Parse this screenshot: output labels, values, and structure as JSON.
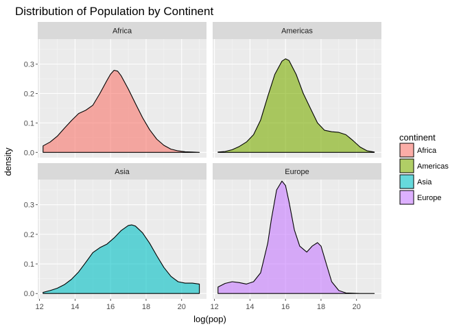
{
  "chart_data": {
    "type": "area",
    "title": "Distribution of Population by Continent",
    "xlabel": "log(pop)",
    "ylabel": "density",
    "xlim": [
      11.9,
      21.4
    ],
    "ylim": [
      -0.018,
      0.385
    ],
    "x_ticks": [
      12,
      14,
      16,
      18,
      20
    ],
    "y_ticks": [
      0.0,
      0.1,
      0.2,
      0.3
    ],
    "y_tick_labels": [
      "0.0",
      "0.1",
      "0.2",
      "0.3"
    ],
    "grid": true,
    "facet_layout": "2x2",
    "legend": {
      "title": "continent",
      "placement": "right",
      "entries": [
        "Africa",
        "Americas",
        "Asia",
        "Europe"
      ]
    },
    "series": [
      {
        "name": "Africa",
        "color": "#F8766D",
        "x": [
          12.2,
          12.6,
          13.0,
          13.4,
          13.8,
          14.2,
          14.6,
          15.0,
          15.4,
          15.8,
          16.0,
          16.2,
          16.4,
          16.6,
          17.0,
          17.4,
          17.8,
          18.2,
          18.6,
          19.0,
          19.4,
          19.8,
          20.2,
          20.6,
          21.0
        ],
        "values": [
          0.022,
          0.035,
          0.055,
          0.082,
          0.108,
          0.132,
          0.143,
          0.16,
          0.2,
          0.245,
          0.266,
          0.279,
          0.276,
          0.26,
          0.215,
          0.166,
          0.118,
          0.077,
          0.045,
          0.024,
          0.011,
          0.005,
          0.002,
          0.001,
          0.0
        ]
      },
      {
        "name": "Americas",
        "color": "#7CAE00",
        "x": [
          12.2,
          12.6,
          13.0,
          13.4,
          13.8,
          14.2,
          14.6,
          15.0,
          15.4,
          15.8,
          16.0,
          16.2,
          16.6,
          17.0,
          17.4,
          17.8,
          18.2,
          18.6,
          19.0,
          19.4,
          19.8,
          20.2,
          20.6,
          21.0
        ],
        "values": [
          0.001,
          0.003,
          0.009,
          0.02,
          0.035,
          0.06,
          0.11,
          0.19,
          0.265,
          0.31,
          0.318,
          0.312,
          0.265,
          0.2,
          0.15,
          0.1,
          0.075,
          0.07,
          0.068,
          0.06,
          0.04,
          0.018,
          0.005,
          0.001
        ]
      },
      {
        "name": "Asia",
        "color": "#00BFC4",
        "x": [
          12.2,
          12.6,
          13.0,
          13.4,
          13.8,
          14.2,
          14.6,
          15.0,
          15.4,
          15.8,
          16.2,
          16.6,
          17.0,
          17.2,
          17.4,
          17.8,
          18.2,
          18.6,
          19.0,
          19.4,
          19.8,
          20.2,
          20.6,
          21.0
        ],
        "values": [
          0.004,
          0.01,
          0.018,
          0.03,
          0.048,
          0.073,
          0.105,
          0.138,
          0.155,
          0.167,
          0.188,
          0.213,
          0.23,
          0.232,
          0.228,
          0.205,
          0.17,
          0.128,
          0.088,
          0.058,
          0.04,
          0.035,
          0.035,
          0.032
        ]
      },
      {
        "name": "Europe",
        "color": "#C77CFF",
        "x": [
          12.2,
          12.6,
          13.0,
          13.4,
          13.8,
          14.2,
          14.6,
          15.0,
          15.2,
          15.5,
          15.8,
          16.0,
          16.2,
          16.5,
          16.8,
          17.2,
          17.5,
          17.8,
          18.0,
          18.3,
          18.6,
          19.0,
          19.4,
          19.8,
          20.2,
          20.6,
          21.0
        ],
        "values": [
          0.022,
          0.034,
          0.04,
          0.037,
          0.032,
          0.04,
          0.07,
          0.17,
          0.25,
          0.35,
          0.38,
          0.365,
          0.31,
          0.215,
          0.16,
          0.14,
          0.16,
          0.172,
          0.16,
          0.1,
          0.04,
          0.01,
          0.002,
          0.001,
          0.0,
          0.0,
          0.0
        ]
      }
    ]
  }
}
